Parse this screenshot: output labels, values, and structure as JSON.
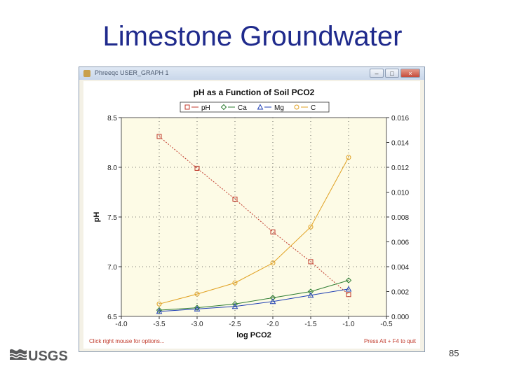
{
  "slide": {
    "title": "Limestone Groundwater",
    "page_number": "85",
    "logo_text": "USGS"
  },
  "window": {
    "title": "Phreeqc USER_GRAPH 1",
    "minimize_label": "–",
    "maximize_label": "□",
    "close_label": "×"
  },
  "chart_data": {
    "type": "line",
    "title": "pH as a Function of Soil PCO2",
    "xlabel": "log PCO2",
    "ylabel": "pH",
    "y2label": "",
    "xlim": [
      -4.0,
      -0.5
    ],
    "ylim": [
      6.5,
      8.5
    ],
    "y2lim": [
      0.0,
      0.016
    ],
    "xticks": [
      "-4.0",
      "-3.5",
      "-3.0",
      "-2.5",
      "-2.0",
      "-1.5",
      "-1.0",
      "-0.5"
    ],
    "yticks": [
      "6.5",
      "7.0",
      "7.5",
      "8.0",
      "8.5"
    ],
    "y2ticks": [
      "0.000",
      "0.002",
      "0.004",
      "0.006",
      "0.008",
      "0.010",
      "0.012",
      "0.014",
      "0.016"
    ],
    "grid": true,
    "legend_position": "top",
    "series": [
      {
        "name": "pH",
        "axis": "left",
        "color": "#c0392b",
        "marker": "square",
        "x": [
          -3.5,
          -3.0,
          -2.5,
          -2.0,
          -1.5,
          -1.0
        ],
        "y": [
          8.31,
          7.99,
          7.68,
          7.35,
          7.05,
          6.72
        ]
      },
      {
        "name": "Ca",
        "axis": "right",
        "color": "#2e7d32",
        "marker": "diamond",
        "x": [
          -3.5,
          -3.0,
          -2.5,
          -2.0,
          -1.5,
          -1.0
        ],
        "y": [
          0.0005,
          0.0007,
          0.001,
          0.0015,
          0.002,
          0.0029
        ]
      },
      {
        "name": "Mg",
        "axis": "right",
        "color": "#1f3fb4",
        "marker": "triangle",
        "x": [
          -3.5,
          -3.0,
          -2.5,
          -2.0,
          -1.5,
          -1.0
        ],
        "y": [
          0.0004,
          0.0006,
          0.0008,
          0.0012,
          0.0017,
          0.0022
        ]
      },
      {
        "name": "C",
        "axis": "right",
        "color": "#e0a020",
        "marker": "circle",
        "x": [
          -3.5,
          -3.0,
          -2.5,
          -2.0,
          -1.5,
          -1.0
        ],
        "y": [
          0.001,
          0.0018,
          0.0027,
          0.0043,
          0.0072,
          0.0128
        ]
      }
    ],
    "footer_left": "Click right mouse for options...",
    "footer_right": "Press Alt + F4 to quit"
  },
  "colors": {
    "title": "#1f2a8c",
    "plot_background": "#fdfbe6",
    "footer_text": "#c0392b"
  }
}
